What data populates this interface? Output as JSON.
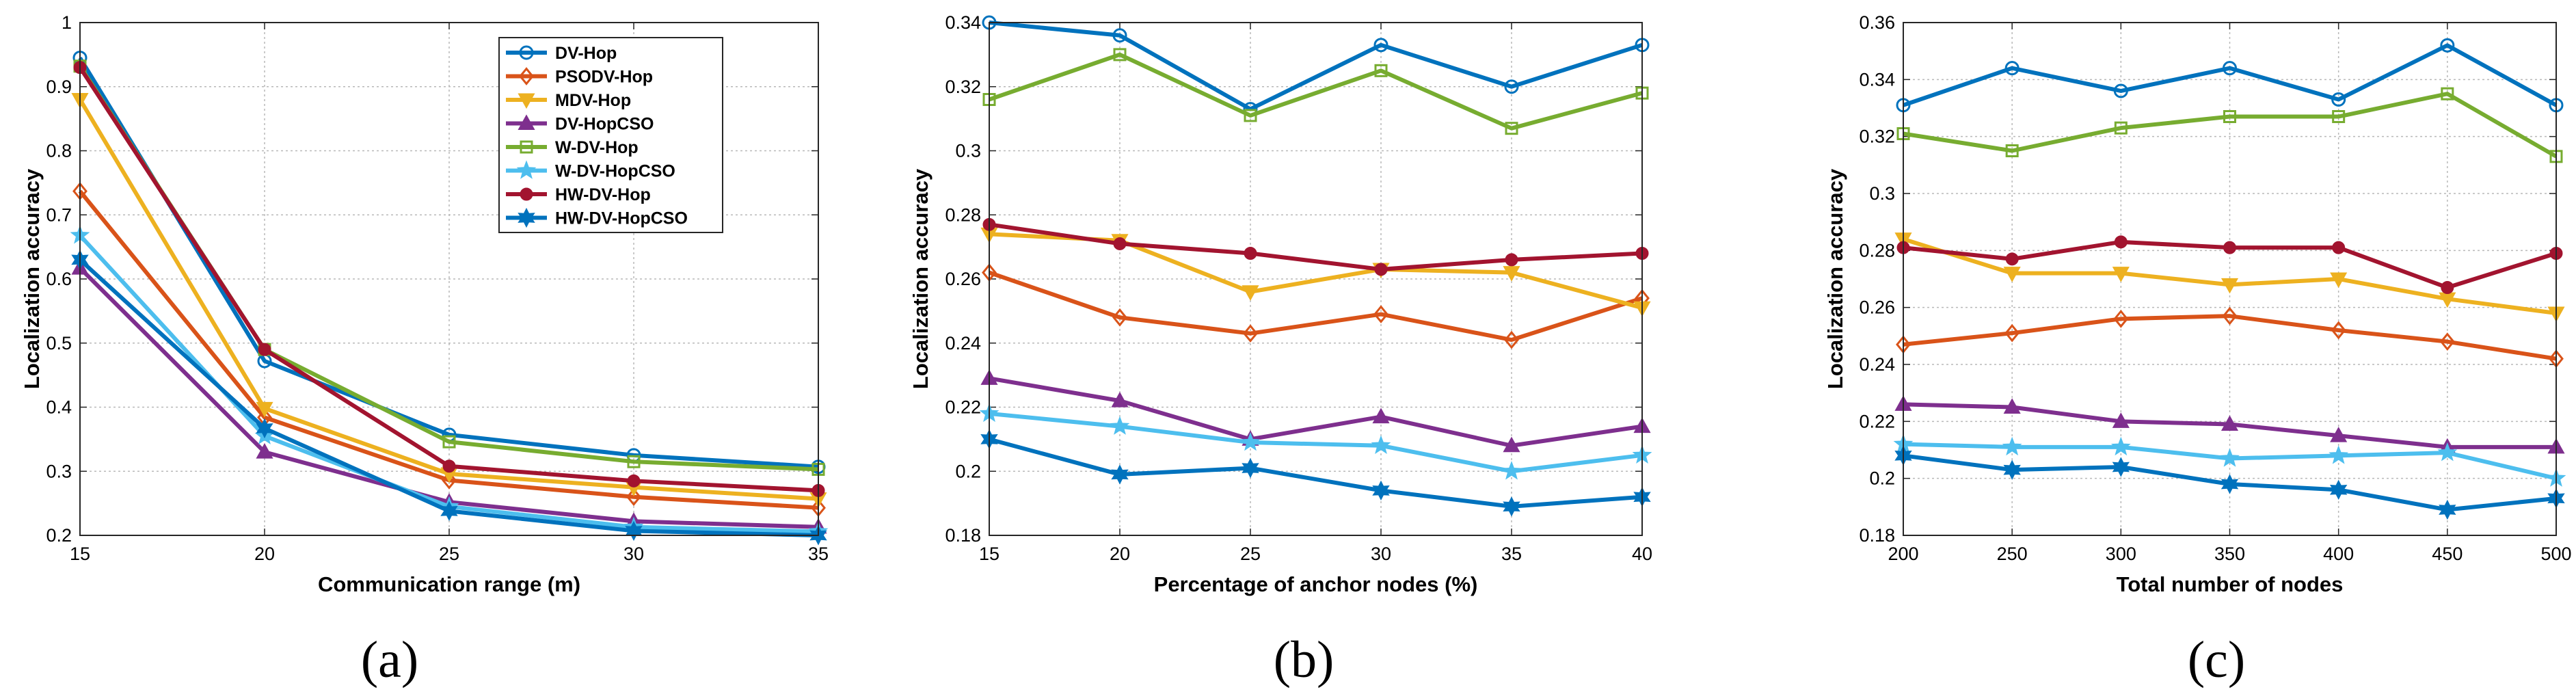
{
  "colors": {
    "DV-Hop": "#0072BD",
    "PSODV-Hop": "#D95319",
    "MDV-Hop": "#EDB120",
    "DV-HopCSO": "#7E2F8E",
    "W-DV-Hop": "#77AC30",
    "W-DV-HopCSO": "#4DBEEE",
    "HW-DV-Hop": "#A2142F",
    "HW-DV-HopCSO": "#0072BD"
  },
  "markers": {
    "DV-Hop": "circle-icon",
    "PSODV-Hop": "diamond-icon",
    "MDV-Hop": "triangle-down-icon",
    "DV-HopCSO": "triangle-up-icon",
    "W-DV-Hop": "square-icon",
    "W-DV-HopCSO": "star-icon",
    "HW-DV-Hop": "filled-circle-icon",
    "HW-DV-HopCSO": "hexagram-icon"
  },
  "chart_data": [
    {
      "type": "line",
      "panel_label": "(a)",
      "xlabel": "Communication range (m)",
      "ylabel": "Localization accuracy",
      "x": [
        15,
        20,
        25,
        30,
        35
      ],
      "xticks": [
        "15",
        "20",
        "25",
        "30",
        "35"
      ],
      "xlim": [
        15,
        35
      ],
      "ylim": [
        0.2,
        1
      ],
      "yticks": [
        "0.2",
        "0.3",
        "0.4",
        "0.5",
        "0.6",
        "0.7",
        "0.8",
        "0.9",
        "1"
      ],
      "grid": true,
      "legend": "top-right",
      "series": [
        {
          "name": "DV-Hop",
          "values": [
            0.945,
            0.472,
            0.357,
            0.325,
            0.307
          ]
        },
        {
          "name": "PSODV-Hop",
          "values": [
            0.737,
            0.384,
            0.286,
            0.26,
            0.243
          ]
        },
        {
          "name": "MDV-Hop",
          "values": [
            0.88,
            0.398,
            0.296,
            0.275,
            0.257
          ]
        },
        {
          "name": "DV-HopCSO",
          "values": [
            0.617,
            0.33,
            0.252,
            0.222,
            0.213
          ]
        },
        {
          "name": "W-DV-Hop",
          "values": [
            0.932,
            0.49,
            0.346,
            0.315,
            0.303
          ]
        },
        {
          "name": "W-DV-HopCSO",
          "values": [
            0.668,
            0.355,
            0.245,
            0.213,
            0.206
          ]
        },
        {
          "name": "HW-DV-Hop",
          "values": [
            0.93,
            0.49,
            0.308,
            0.285,
            0.27
          ]
        },
        {
          "name": "HW-DV-HopCSO",
          "values": [
            0.63,
            0.367,
            0.238,
            0.207,
            0.2
          ]
        }
      ]
    },
    {
      "type": "line",
      "panel_label": "(b)",
      "xlabel": "Percentage of anchor nodes (%)",
      "ylabel": "Localization accuracy",
      "x": [
        15,
        20,
        25,
        30,
        35,
        40
      ],
      "xticks": [
        "15",
        "20",
        "25",
        "30",
        "35",
        "40"
      ],
      "xlim": [
        15,
        40
      ],
      "ylim": [
        0.18,
        0.34
      ],
      "yticks": [
        "0.18",
        "0.2",
        "0.22",
        "0.24",
        "0.26",
        "0.28",
        "0.3",
        "0.32",
        "0.34"
      ],
      "grid": true,
      "series": [
        {
          "name": "DV-Hop",
          "values": [
            0.34,
            0.336,
            0.313,
            0.333,
            0.32,
            0.333
          ]
        },
        {
          "name": "PSODV-Hop",
          "values": [
            0.262,
            0.248,
            0.243,
            0.249,
            0.241,
            0.254
          ]
        },
        {
          "name": "MDV-Hop",
          "values": [
            0.274,
            0.272,
            0.256,
            0.263,
            0.262,
            0.251
          ]
        },
        {
          "name": "DV-HopCSO",
          "values": [
            0.229,
            0.222,
            0.21,
            0.217,
            0.208,
            0.214
          ]
        },
        {
          "name": "W-DV-Hop",
          "values": [
            0.316,
            0.33,
            0.311,
            0.325,
            0.307,
            0.318
          ]
        },
        {
          "name": "W-DV-HopCSO",
          "values": [
            0.218,
            0.214,
            0.209,
            0.208,
            0.2,
            0.205
          ]
        },
        {
          "name": "HW-DV-Hop",
          "values": [
            0.277,
            0.271,
            0.268,
            0.263,
            0.266,
            0.268
          ]
        },
        {
          "name": "HW-DV-HopCSO",
          "values": [
            0.21,
            0.199,
            0.201,
            0.194,
            0.189,
            0.192
          ]
        }
      ]
    },
    {
      "type": "line",
      "panel_label": "(c)",
      "xlabel": "Total number of nodes",
      "ylabel": "Localization accuracy",
      "x": [
        200,
        250,
        300,
        350,
        400,
        450,
        500
      ],
      "xticks": [
        "200",
        "250",
        "300",
        "350",
        "400",
        "450",
        "500"
      ],
      "xlim": [
        200,
        500
      ],
      "ylim": [
        0.18,
        0.36
      ],
      "yticks": [
        "0.18",
        "0.2",
        "0.22",
        "0.24",
        "0.26",
        "0.28",
        "0.3",
        "0.32",
        "0.34",
        "0.36"
      ],
      "grid": true,
      "series": [
        {
          "name": "DV-Hop",
          "values": [
            0.331,
            0.344,
            0.336,
            0.344,
            0.333,
            0.352,
            0.331
          ]
        },
        {
          "name": "PSODV-Hop",
          "values": [
            0.247,
            0.251,
            0.256,
            0.257,
            0.252,
            0.248,
            0.242
          ]
        },
        {
          "name": "MDV-Hop",
          "values": [
            0.284,
            0.272,
            0.272,
            0.268,
            0.27,
            0.263,
            0.258
          ]
        },
        {
          "name": "DV-HopCSO",
          "values": [
            0.226,
            0.225,
            0.22,
            0.219,
            0.215,
            0.211,
            0.211
          ]
        },
        {
          "name": "W-DV-Hop",
          "values": [
            0.321,
            0.315,
            0.323,
            0.327,
            0.327,
            0.335,
            0.313
          ]
        },
        {
          "name": "W-DV-HopCSO",
          "values": [
            0.212,
            0.211,
            0.211,
            0.207,
            0.208,
            0.209,
            0.2
          ]
        },
        {
          "name": "HW-DV-Hop",
          "values": [
            0.281,
            0.277,
            0.283,
            0.281,
            0.281,
            0.267,
            0.279
          ]
        },
        {
          "name": "HW-DV-HopCSO",
          "values": [
            0.208,
            0.203,
            0.204,
            0.198,
            0.196,
            0.189,
            0.193
          ]
        }
      ]
    }
  ]
}
